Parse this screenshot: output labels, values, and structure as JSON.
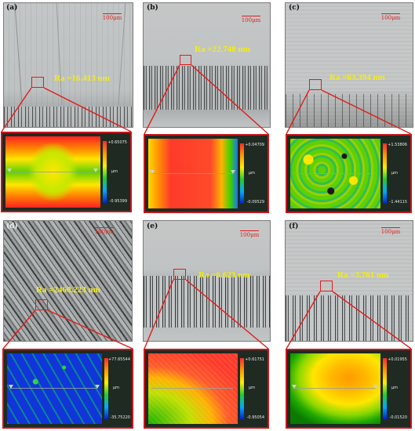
{
  "panels": [
    {
      "label": "(a)",
      "scale": "100μm",
      "ra": "Ra =16.413 nm",
      "cbar_max": "+0.65075",
      "cbar_min": "-0.95399",
      "unit": "μm"
    },
    {
      "label": "(b)",
      "scale": "100μm",
      "ra": "Ra =22.748 nm",
      "cbar_max": "+0.04709",
      "cbar_min": "-0.09529",
      "unit": "μm"
    },
    {
      "label": "(c)",
      "scale": "100μm",
      "ra": "Ra =63.394 nm",
      "cbar_max": "+1.53806",
      "cbar_min": "-1.44115",
      "unit": "μm"
    },
    {
      "label": "(d)",
      "scale": "100μm",
      "ra": "Ra =2460.223 nm",
      "cbar_max": "+77.65544",
      "cbar_min": "-35.75220",
      "unit": "μm"
    },
    {
      "label": "(e)",
      "scale": "100μm",
      "ra": "Ra =6.623 nm",
      "cbar_max": "+0.61751",
      "cbar_min": "-0.95054",
      "unit": "μm"
    },
    {
      "label": "(f)",
      "scale": "100μm",
      "ra": "Ra =3.761 nm",
      "cbar_max": "+0.01955",
      "cbar_min": "-0.01520",
      "unit": "μm"
    }
  ],
  "colors": {
    "marker": "#e21b1b",
    "ra_text": "#f2ec1a",
    "scale": "#dd2222"
  }
}
